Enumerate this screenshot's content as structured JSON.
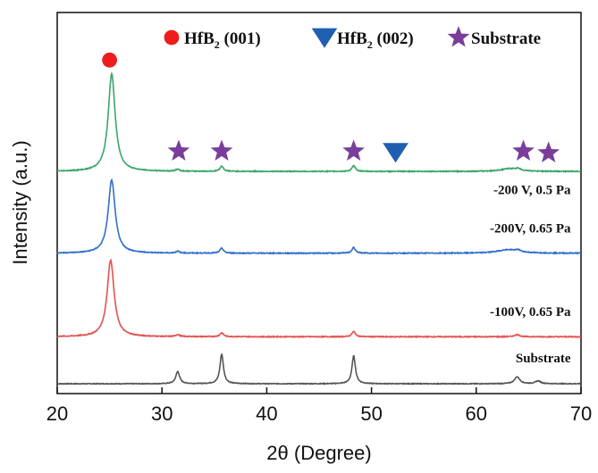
{
  "chart_data": {
    "type": "line",
    "xlabel": "2θ (Degree)",
    "ylabel": "Intensity (a.u.)",
    "xlim": [
      20,
      70
    ],
    "xticks": [
      "20",
      "30",
      "40",
      "50",
      "60",
      "70"
    ],
    "ylim": [
      0,
      100
    ],
    "grid": false,
    "legend": {
      "placement": "top-right",
      "entries": [
        {
          "marker": "circle",
          "color": "#ee1c1c",
          "text": "HfB",
          "sub": "2",
          "suffix": " (001)"
        },
        {
          "marker": "triangle-down",
          "color": "#1f5fb0",
          "text": "HfB",
          "sub": "2",
          "suffix": " (002)"
        },
        {
          "marker": "star",
          "color": "#7a3e9a",
          "text": "Substrate",
          "sub": "",
          "suffix": ""
        }
      ]
    },
    "series": [
      {
        "name": "Substrate",
        "color": "#555555",
        "baseline": 0,
        "noise": 0.2,
        "peaks": [
          [
            31.5,
            3.5,
            0.22
          ],
          [
            35.7,
            8.5,
            0.2
          ],
          [
            48.3,
            8.0,
            0.2
          ],
          [
            63.9,
            2.0,
            0.3
          ],
          [
            65.9,
            0.8,
            0.3
          ]
        ]
      },
      {
        "name": "-100V, 0.65 Pa",
        "color": "#e55050",
        "baseline": 13.5,
        "noise": 0.25,
        "peaks": [
          [
            25.1,
            22,
            0.4
          ],
          [
            31.5,
            0.6,
            0.2
          ],
          [
            35.7,
            1.1,
            0.2
          ],
          [
            48.3,
            1.5,
            0.2
          ],
          [
            63.9,
            0.6,
            0.3
          ]
        ]
      },
      {
        "name": "-200V, 0.65 Pa",
        "color": "#2f6fcb",
        "baseline": 37.5,
        "noise": 0.25,
        "peaks": [
          [
            25.2,
            21,
            0.4
          ],
          [
            31.5,
            0.5,
            0.2
          ],
          [
            35.7,
            1.4,
            0.2
          ],
          [
            48.3,
            1.6,
            0.2
          ],
          [
            63.0,
            1.0,
            1.2
          ],
          [
            64.0,
            0.5,
            0.3
          ]
        ]
      },
      {
        "name": "-200 V, 0.5 Pa",
        "color": "#3aa56a",
        "baseline": 61,
        "noise": 0.25,
        "peaks": [
          [
            25.2,
            28,
            0.4
          ],
          [
            31.5,
            0.6,
            0.2
          ],
          [
            35.7,
            1.5,
            0.2
          ],
          [
            48.3,
            1.6,
            0.2
          ],
          [
            63.2,
            0.8,
            1.0
          ],
          [
            64.0,
            0.5,
            0.3
          ]
        ]
      }
    ],
    "curve_labels": [
      {
        "series": "Substrate",
        "text": "Substrate",
        "x_end": 68,
        "y": 6.2
      },
      {
        "series": "-100V, 0.65 Pa",
        "text": "-100V, 0.65 Pa",
        "x_end": 68,
        "y": 19.5
      },
      {
        "series": "-200V, 0.65 Pa",
        "text": "-200V, 0.65 Pa",
        "x_end": 68,
        "y": 43.5
      },
      {
        "series": "-200 V, 0.5 Pa",
        "text": "-200 V, 0.5 Pa",
        "x_end": 68,
        "y": 54.5
      }
    ],
    "annotations": [
      {
        "marker": "circle",
        "color": "#ee1c1c",
        "x": 25.0,
        "y": 93
      },
      {
        "marker": "star",
        "color": "#7a3e9a",
        "x": 31.6,
        "y": 66.8
      },
      {
        "marker": "star",
        "color": "#7a3e9a",
        "x": 35.7,
        "y": 66.8
      },
      {
        "marker": "star",
        "color": "#7a3e9a",
        "x": 48.3,
        "y": 66.8
      },
      {
        "marker": "triangle-down",
        "color": "#1f5fb0",
        "x": 52.3,
        "y": 66.5
      },
      {
        "marker": "star",
        "color": "#7a3e9a",
        "x": 64.5,
        "y": 66.8
      },
      {
        "marker": "star",
        "color": "#7a3e9a",
        "x": 66.9,
        "y": 66.3
      }
    ]
  }
}
